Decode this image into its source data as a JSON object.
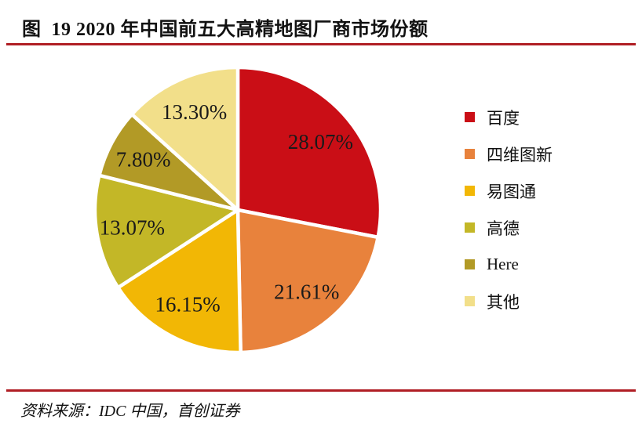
{
  "header": {
    "title": "图  19 2020 年中国前五大高精地图厂商市场份额"
  },
  "footer": {
    "source": "资料来源：IDC 中国，首创证券"
  },
  "colors": {
    "rule": "#B01E24",
    "label_text": "#1A1A1A"
  },
  "chart_data": {
    "type": "pie",
    "title": "2020 年中国前五大高精地图厂商市场份额",
    "start_angle_deg": 0,
    "direction": "clockwise",
    "legend_position": "right",
    "data_labels": "percent-inside",
    "slices": [
      {
        "name": "百度",
        "value": 28.07,
        "label": "28.07%",
        "color": "#CA0E16"
      },
      {
        "name": "四维图新",
        "value": 21.61,
        "label": "21.61%",
        "color": "#E8823C"
      },
      {
        "name": "易图通",
        "value": 16.15,
        "label": "16.15%",
        "color": "#F2B705"
      },
      {
        "name": "高德",
        "value": 13.07,
        "label": "13.07%",
        "color": "#C3B727"
      },
      {
        "name": "Here",
        "value": 7.8,
        "label": "7.80%",
        "color": "#B29A26"
      },
      {
        "name": "其他",
        "value": 13.3,
        "label": "13.30%",
        "color": "#F2DF8A"
      }
    ]
  }
}
